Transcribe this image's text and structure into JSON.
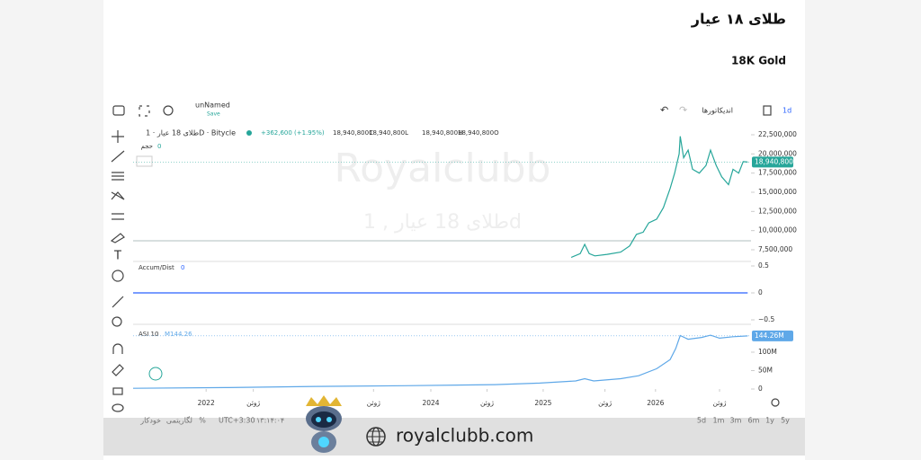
{
  "header": {
    "title_fa": "طلای ۱۸ عیار",
    "title_en": "18K Gold"
  },
  "toolbar": {
    "layout_name": "unNamed",
    "save": "Save",
    "indicators": "اندیکاتورها",
    "interval": "1d"
  },
  "legend": {
    "symbol": "طلای 18 عیار · 1D · Bitycle",
    "change": "+362,600 (+1.95%)",
    "ohlc": [
      "18,940,800C",
      "18,940,800L",
      "18,940,800H",
      "18,940,800O"
    ],
    "volume_label": "حجم",
    "volume_value": "0",
    "accum_label": "Accum/Dist",
    "accum_value": "0",
    "asi_label": "ASI 10",
    "asi_value": "M144.26"
  },
  "watermark": {
    "brand": "Royalclubb",
    "symbol": "طلای 18 عیار , 1d"
  },
  "footer": {
    "ranges": [
      "5d",
      "1m",
      "3m",
      "6m",
      "1y",
      "5y"
    ],
    "timezone": "UTC+3:30",
    "clock": "۱۳:۱۴:۰۴",
    "percent": "%",
    "log": "لگاریتمی",
    "auto": "خودکار"
  },
  "banner": {
    "url": "royalclubb.com"
  },
  "chart_data": [
    {
      "type": "line",
      "color": "#26a69a",
      "xlim": [
        2021.35,
        2026.85
      ],
      "ylim": [
        6000000,
        23000000
      ],
      "yticks": [
        {
          "value": 7500000,
          "label": "7,500,000"
        },
        {
          "value": 10000000,
          "label": "10,000,000"
        },
        {
          "value": 12500000,
          "label": "12,500,000"
        },
        {
          "value": 15000000,
          "label": "15,000,000"
        },
        {
          "value": 17500000,
          "label": "17,500,000"
        },
        {
          "value": 20000000,
          "label": "20,000,000"
        },
        {
          "value": 22500000,
          "label": "22,500,000"
        }
      ],
      "current": {
        "value": 18940800,
        "label": "18,940,800"
      },
      "x": [
        2025.25,
        2025.33,
        2025.37,
        2025.41,
        2025.46,
        2025.57,
        2025.69,
        2025.77,
        2025.83,
        2025.89,
        2025.94,
        2026.01,
        2026.07,
        2026.13,
        2026.17,
        2026.21,
        2026.22,
        2026.25,
        2026.29,
        2026.33,
        2026.39,
        2026.45,
        2026.49,
        2026.54,
        2026.59,
        2026.65,
        2026.69,
        2026.74,
        2026.78,
        2026.82
      ],
      "values": [
        6500000,
        7000000,
        8200000,
        7000000,
        6700000,
        6900000,
        7200000,
        8000000,
        9500000,
        9800000,
        11000000,
        11500000,
        13000000,
        15500000,
        17500000,
        20000000,
        22300000,
        19500000,
        20500000,
        18000000,
        17500000,
        18500000,
        20500000,
        18500000,
        17000000,
        16000000,
        18000000,
        17500000,
        19000000,
        18940800
      ]
    },
    {
      "type": "line",
      "color": "#2962ff",
      "xlim": [
        2021.35,
        2026.85
      ],
      "ylim": [
        -0.55,
        0.55
      ],
      "yticks": [
        {
          "value": -0.5,
          "label": "−0.5"
        },
        0,
        0.5
      ],
      "x": [
        2021.35,
        2026.82
      ],
      "values": [
        0,
        0
      ]
    },
    {
      "type": "line",
      "color": "#5fa8e8",
      "xlim": [
        2021.35,
        2026.85
      ],
      "ylim": [
        0,
        160000000
      ],
      "yticks": [
        0,
        {
          "value": 50000000,
          "label": "50M"
        },
        {
          "value": 100000000,
          "label": "100M"
        }
      ],
      "current": {
        "value": 144260000,
        "label": "144.26M"
      },
      "xticks": [
        {
          "value": 2022,
          "label": "2022"
        },
        {
          "value": 2022.42,
          "label": "ژوئن"
        },
        {
          "value": 2023.49,
          "label": "ژوئن"
        },
        {
          "value": 2024,
          "label": "2024"
        },
        {
          "value": 2024.5,
          "label": "ژوئن"
        },
        {
          "value": 2025,
          "label": "2025"
        },
        {
          "value": 2025.55,
          "label": "ژوئن"
        },
        {
          "value": 2026,
          "label": "2026"
        },
        {
          "value": 2026.57,
          "label": "ژوئن"
        }
      ],
      "x": [
        2021.35,
        2022.17,
        2022.97,
        2023.77,
        2024.57,
        2024.97,
        2025.29,
        2025.37,
        2025.45,
        2025.69,
        2025.85,
        2026.01,
        2026.13,
        2026.18,
        2026.22,
        2026.29,
        2026.41,
        2026.49,
        2026.57,
        2026.69,
        2026.82
      ],
      "values": [
        2000000,
        4000000,
        7000000,
        9000000,
        12000000,
        16000000,
        22000000,
        28000000,
        22000000,
        28000000,
        36000000,
        55000000,
        80000000,
        110000000,
        145000000,
        135000000,
        140000000,
        146000000,
        138000000,
        142000000,
        144260000
      ]
    }
  ]
}
